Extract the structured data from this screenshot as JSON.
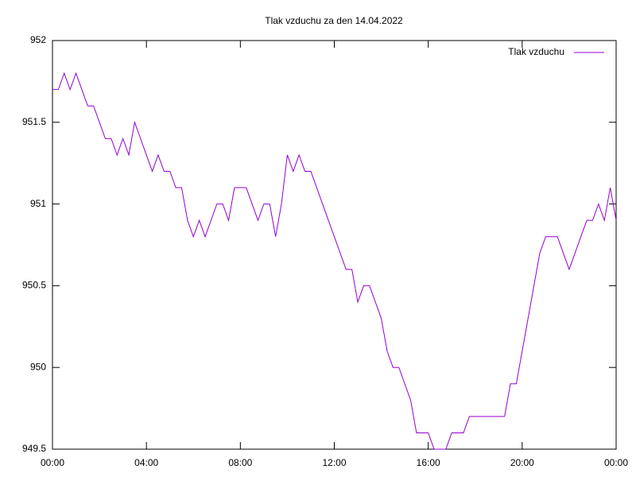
{
  "chart_data": {
    "type": "line",
    "title": "Tlak vzduchu za den 14.04.2022",
    "x": [
      0,
      0.25,
      0.5,
      0.75,
      1,
      1.25,
      1.5,
      1.75,
      2,
      2.25,
      2.5,
      2.75,
      3,
      3.25,
      3.5,
      3.75,
      4,
      4.25,
      4.5,
      4.75,
      5,
      5.25,
      5.5,
      5.75,
      6,
      6.25,
      6.5,
      6.75,
      7,
      7.25,
      7.5,
      7.75,
      8,
      8.25,
      8.5,
      8.75,
      9,
      9.25,
      9.5,
      9.75,
      10,
      10.25,
      10.5,
      10.75,
      11,
      11.25,
      11.5,
      11.75,
      12,
      12.25,
      12.5,
      12.75,
      13,
      13.25,
      13.5,
      13.75,
      14,
      14.25,
      14.5,
      14.75,
      15,
      15.25,
      15.5,
      15.75,
      16,
      16.25,
      16.5,
      16.75,
      17,
      17.25,
      17.5,
      17.75,
      18,
      18.25,
      18.5,
      18.75,
      19,
      19.25,
      19.5,
      19.75,
      20,
      20.25,
      20.5,
      20.75,
      21,
      21.25,
      21.5,
      21.75,
      22,
      22.25,
      22.5,
      22.75,
      23,
      23.25,
      23.5,
      23.75,
      24
    ],
    "series": [
      {
        "name": "Tlak vzduchu",
        "color": "#9400d3",
        "values": [
          951.7,
          951.7,
          951.8,
          951.7,
          951.8,
          951.7,
          951.6,
          951.6,
          951.5,
          951.4,
          951.4,
          951.3,
          951.4,
          951.3,
          951.5,
          951.4,
          951.3,
          951.2,
          951.3,
          951.2,
          951.2,
          951.1,
          951.1,
          950.9,
          950.8,
          950.9,
          950.8,
          950.9,
          951.0,
          951.0,
          950.9,
          951.1,
          951.1,
          951.1,
          951.0,
          950.9,
          951.0,
          951.0,
          950.8,
          951.0,
          951.3,
          951.2,
          951.3,
          951.2,
          951.2,
          951.1,
          951.0,
          950.9,
          950.8,
          950.7,
          950.6,
          950.6,
          950.4,
          950.5,
          950.5,
          950.4,
          950.3,
          950.1,
          950.0,
          950.0,
          949.9,
          949.8,
          949.6,
          949.6,
          949.6,
          949.5,
          949.5,
          949.5,
          949.6,
          949.6,
          949.6,
          949.7,
          949.7,
          949.7,
          949.7,
          949.7,
          949.7,
          949.7,
          949.9,
          949.9,
          950.1,
          950.3,
          950.5,
          950.7,
          950.8,
          950.8,
          950.8,
          950.7,
          950.6,
          950.7,
          950.8,
          950.9,
          950.9,
          951.0,
          950.9,
          951.1,
          950.9
        ]
      }
    ],
    "xlim": [
      0,
      24
    ],
    "xticks": [
      {
        "value": 0,
        "label": "00:00"
      },
      {
        "value": 4,
        "label": "04:00"
      },
      {
        "value": 8,
        "label": "08:00"
      },
      {
        "value": 12,
        "label": "12:00"
      },
      {
        "value": 16,
        "label": "16:00"
      },
      {
        "value": 20,
        "label": "20:00"
      },
      {
        "value": 24,
        "label": "00:00"
      }
    ],
    "ylim": [
      949.5,
      952
    ],
    "yticks": [
      949.5,
      950,
      950.5,
      951,
      951.5,
      952
    ],
    "legend": "top-right"
  }
}
